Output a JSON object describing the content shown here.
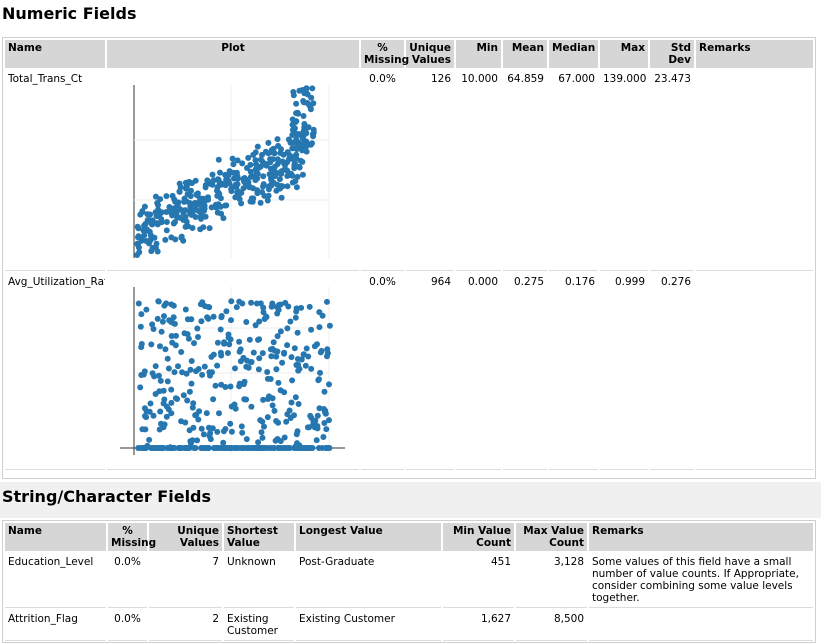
{
  "numeric_section": {
    "title": "Numeric Fields",
    "header": [
      "Name",
      "Plot",
      "% Missing",
      "Unique Values",
      "Min",
      "Mean",
      "Median",
      "Max",
      "Std Dev",
      "Remarks"
    ],
    "rows": [
      {
        "name": "Total_Trans_Ct",
        "missing": "0.0%",
        "unique": "126",
        "min": "10.000",
        "mean": "64.859",
        "median": "67.000",
        "max": "139.000",
        "std_dev": "23.473"
      },
      {
        "name": "Avg_Utilization_Ratio",
        "missing": "0.0%",
        "unique": "964",
        "min": "0.000",
        "mean": "0.275",
        "median": "0.176",
        "max": "0.999",
        "std_dev": "0.276"
      }
    ]
  },
  "string_section": {
    "title": "String/Character Fields",
    "header": [
      "Name",
      "% Missing",
      "Unique Values",
      "Shortest Value",
      "Longest Value",
      "Min Value Count",
      "Max Value Count",
      "Remarks"
    ],
    "rows": [
      {
        "name": "Education_Level",
        "missing": "0.0%",
        "unique": "7",
        "shortest": "Unknown",
        "longest": "Post-Graduate",
        "min_count": "451",
        "max_count": "3,128",
        "remarks": "Some values of this field have a small number of value counts. If Appropriate, consider combining some value levels together."
      },
      {
        "name": "Attrition_Flag",
        "missing": "0.0%",
        "unique": "2",
        "shortest": "Existing Customer",
        "longest": "Existing Customer",
        "min_count": "1,627",
        "max_count": "8,500"
      }
    ]
  }
}
